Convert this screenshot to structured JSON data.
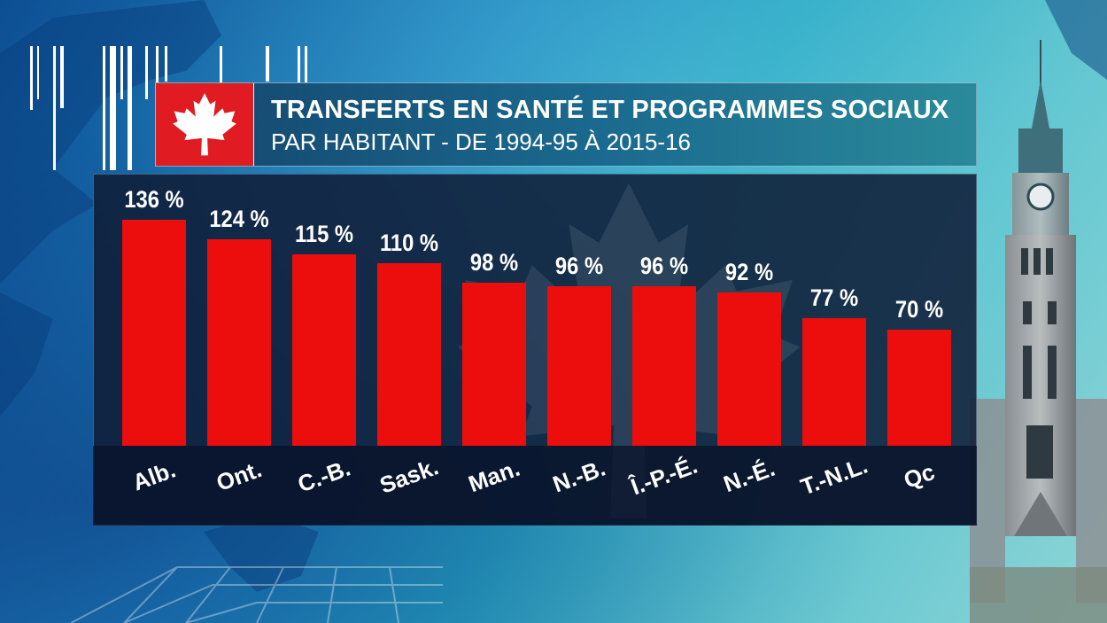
{
  "header": {
    "title": "TRANSFERTS EN SANTÉ ET PROGRAMMES SOCIAUX",
    "subtitle": "PAR HABITANT - DE 1994-95 À 2015-16",
    "flag_icon": "maple-leaf-icon"
  },
  "colors": {
    "bar": "#ec0d0d",
    "flag_red": "#e11b22",
    "panel": "#101e38",
    "text": "#ffffff"
  },
  "chart_data": {
    "type": "bar",
    "title": "TRANSFERTS EN SANTÉ ET PROGRAMMES SOCIAUX",
    "subtitle": "PAR HABITANT - DE 1994-95 À 2015-16",
    "categories": [
      "Alb.",
      "Ont.",
      "C.-B.",
      "Sask.",
      "Man.",
      "N.-B.",
      "Î.-P.-É.",
      "N.-É.",
      "T.-N.L.",
      "Qc"
    ],
    "values": [
      136,
      124,
      115,
      110,
      98,
      96,
      96,
      92,
      77,
      70
    ],
    "value_labels": [
      "136 %",
      "124 %",
      "115 %",
      "110 %",
      "98 %",
      "96 %",
      "96 %",
      "92 %",
      "77 %",
      "70 %"
    ],
    "unit": "%",
    "ylim": [
      0,
      136
    ],
    "grid": false,
    "legend": "none",
    "xlabel": "",
    "ylabel": ""
  }
}
